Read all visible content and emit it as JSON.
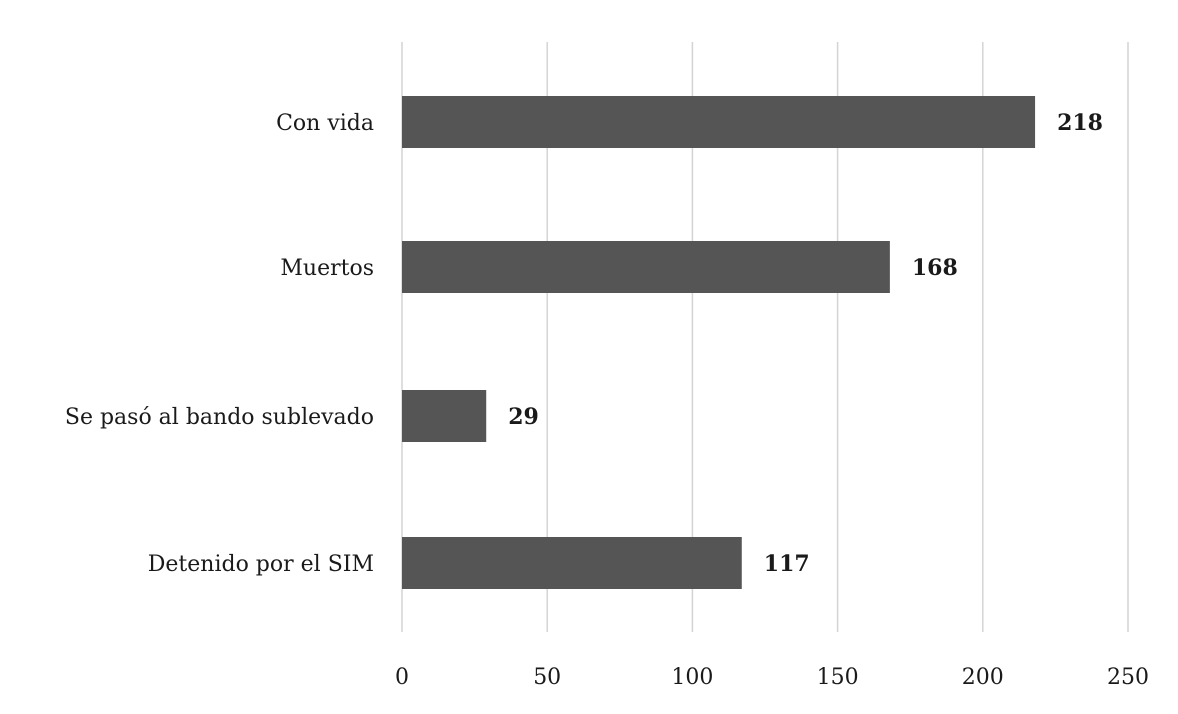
{
  "chart_data": {
    "type": "bar",
    "orientation": "horizontal",
    "categories": [
      "Con vida",
      "Muertos",
      "Se pasó al bando sublevado",
      "Detenido por el SIM"
    ],
    "values": [
      218,
      168,
      29,
      117
    ],
    "data_labels": [
      "218",
      "168",
      "29",
      "117"
    ],
    "xlim": [
      0,
      250
    ],
    "x_ticks": [
      0,
      50,
      100,
      150,
      200,
      250
    ],
    "x_tick_labels": [
      "0",
      "50",
      "100",
      "150",
      "200",
      "250"
    ],
    "grid": "vertical",
    "legend": "none",
    "title": "",
    "xlabel": "",
    "ylabel": ""
  },
  "colors": {
    "bar": "#555555",
    "grid": "#d4d4d4",
    "text": "#1a1a1a",
    "background": "#ffffff"
  }
}
